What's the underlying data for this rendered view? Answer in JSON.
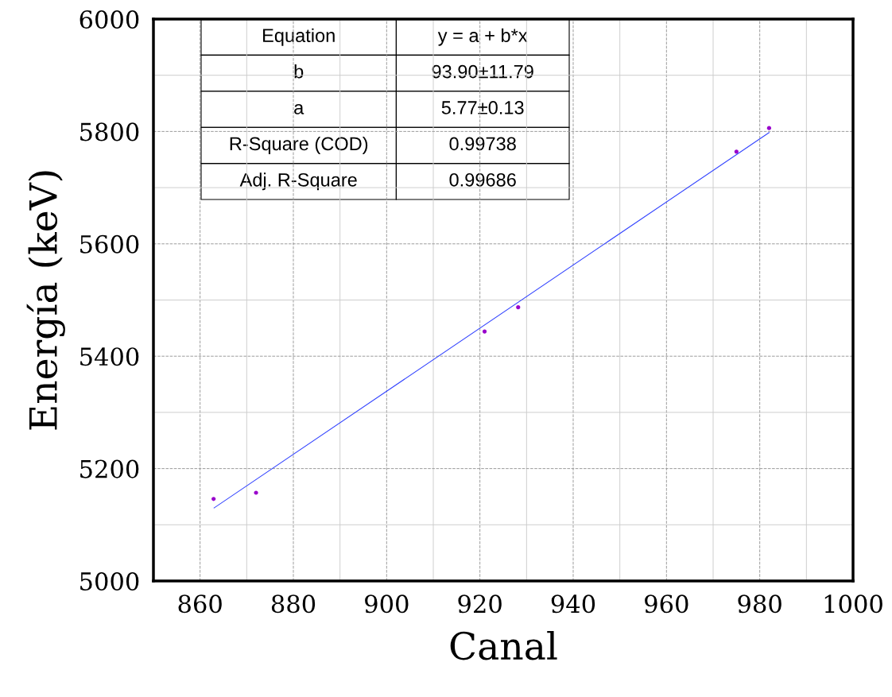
{
  "chart_data": {
    "type": "scatter",
    "xlabel": "Canal",
    "ylabel": "Energía (keV)",
    "xlim": [
      850,
      1000
    ],
    "xticks": [
      860,
      880,
      900,
      920,
      940,
      960,
      980,
      1000
    ],
    "ylim": [
      5000,
      6000
    ],
    "yticks": [
      5000,
      5200,
      5400,
      5600,
      5800,
      6000
    ],
    "grid": true,
    "series": [
      {
        "marker": "circle",
        "color": "#9900cc",
        "x": [
          862.9,
          872,
          921,
          928.2,
          975,
          982
        ],
        "values": [
          5146,
          5157,
          5444,
          5487,
          5764,
          5806
        ]
      },
      {
        "type": "line",
        "color": "#3344ff",
        "x": [
          863,
          982
        ],
        "values": [
          5130,
          5798
        ]
      }
    ],
    "annotations": [
      "Equation",
      "y = a + b*x",
      "b",
      "93.90±11.79",
      "a",
      "5.77±0.13",
      "R-Square (COD)",
      "0.99738",
      "Adj. R-Square",
      "0.99686"
    ]
  }
}
